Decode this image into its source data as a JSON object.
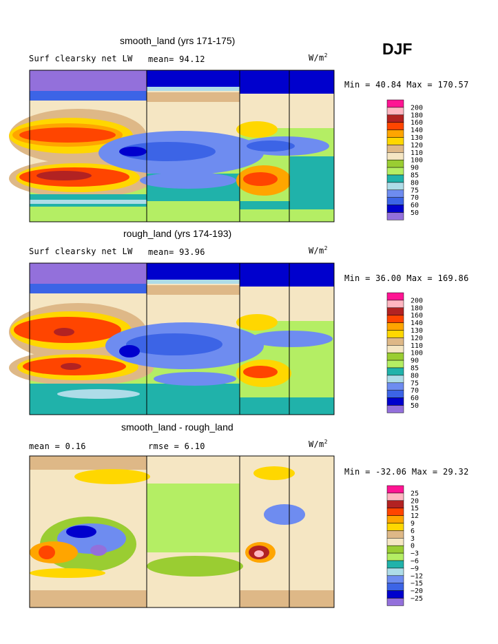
{
  "season": "DJF",
  "colors": {
    "purple": "#9370DB",
    "navy": "#0000CD",
    "blue": "#3C64E6",
    "cornflower": "#6E8CF0",
    "lightblue": "#AEDCE8",
    "teal": "#20B2AA",
    "lightgreen": "#B4EE64",
    "olive": "#9ACD32",
    "wheat": "#F5E6C3",
    "tan": "#DEB887",
    "gold": "#FFD700",
    "orange": "#FFA500",
    "orangered": "#FF4500",
    "firebrick": "#B22222",
    "pink": "#FFB6C1",
    "deeppink": "#FF1493",
    "frame": "#000000"
  },
  "panels": [
    {
      "title": "smooth_land (yrs 171-175)",
      "left_label": "Surf clearsky net LW",
      "mid_label": "mean=  94.12",
      "unit": "W/m",
      "unit_sup": "2",
      "stats": "Min =  40.84 Max = 170.57",
      "legend_labels": [
        "200",
        "180",
        "160",
        "140",
        "130",
        "120",
        "110",
        "100",
        "90",
        "85",
        "80",
        "75",
        "70",
        "60",
        "50"
      ]
    },
    {
      "title": "rough_land (yrs 174-193)",
      "left_label": "Surf clearsky net LW",
      "mid_label": "mean=  93.96",
      "unit": "W/m",
      "unit_sup": "2",
      "stats": "Min =  36.00 Max = 169.86",
      "legend_labels": [
        "200",
        "180",
        "160",
        "140",
        "130",
        "120",
        "110",
        "100",
        "90",
        "85",
        "80",
        "75",
        "70",
        "60",
        "50"
      ]
    },
    {
      "title": "smooth_land - rough_land",
      "left_label": "mean =   0.16",
      "mid_label": "rmse =   6.10",
      "unit": "W/m",
      "unit_sup": "2",
      "stats": "Min = -32.06 Max =  29.32",
      "legend_labels": [
        "25",
        "20",
        "15",
        "12",
        "9",
        "6",
        "3",
        "0",
        "−3",
        "−6",
        "−9",
        "−12",
        "−15",
        "−20",
        "−25"
      ]
    }
  ]
}
